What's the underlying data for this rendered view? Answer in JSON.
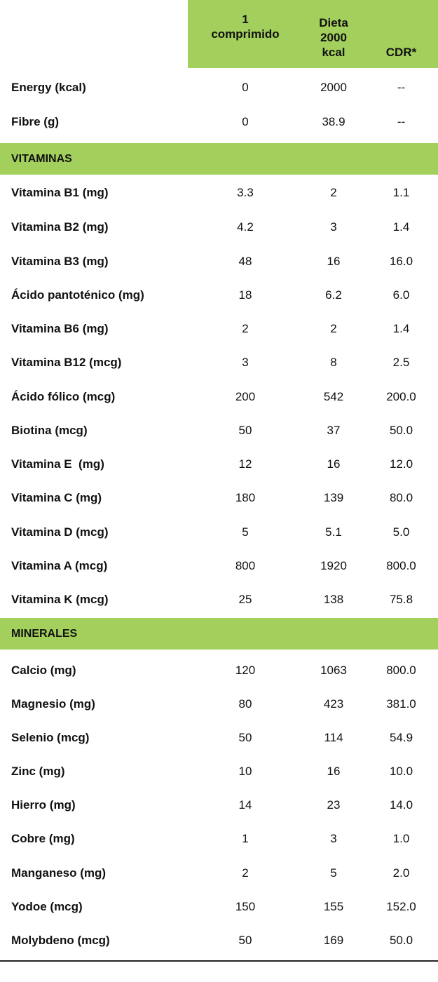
{
  "table": {
    "headers": [
      "1\ncomprimido",
      "Dieta\n2000\nkcal",
      "CDR*"
    ],
    "top_rows": [
      {
        "label": "Energy (kcal)",
        "values": [
          "0",
          "2000",
          "--"
        ]
      },
      {
        "label": "Fibre (g)",
        "values": [
          "0",
          "38.9",
          "--"
        ]
      }
    ],
    "vitaminas_title": "VITAMINAS",
    "vitaminas": [
      {
        "label": "Vitamina B1 (mg)",
        "values": [
          "3.3",
          "2",
          "1.1"
        ]
      },
      {
        "label": "Vitamina B2 (mg)",
        "values": [
          "4.2",
          "3",
          "1.4"
        ]
      },
      {
        "label": "Vitamina B3 (mg)",
        "values": [
          "48",
          "16",
          "16.0"
        ]
      },
      {
        "label": "Ácido pantoténico (mg)",
        "values": [
          "18",
          "6.2",
          "6.0"
        ]
      },
      {
        "label": "Vitamina B6 (mg)",
        "values": [
          "2",
          "2",
          "1.4"
        ]
      },
      {
        "label": "Vitamina B12 (mcg)",
        "values": [
          "3",
          "8",
          "2.5"
        ]
      },
      {
        "label": "Ácido fólico (mcg)",
        "values": [
          "200",
          "542",
          "200.0"
        ]
      },
      {
        "label": "Biotina (mcg)",
        "values": [
          "50",
          "37",
          "50.0"
        ]
      },
      {
        "label": "Vitamina E  (mg)",
        "values": [
          "12",
          "16",
          "12.0"
        ]
      },
      {
        "label": "Vitamina C (mg)",
        "values": [
          "180",
          "139",
          "80.0"
        ]
      },
      {
        "label": "Vitamina D (mcg)",
        "values": [
          "5",
          "5.1",
          "5.0"
        ]
      },
      {
        "label": "Vitamina A (mcg)",
        "values": [
          "800",
          "1920",
          "800.0"
        ]
      },
      {
        "label": "Vitamina K (mcg)",
        "values": [
          "25",
          "138",
          "75.8"
        ]
      }
    ],
    "minerales_title": "MINERALES",
    "minerales": [
      {
        "label": "Calcio (mg)",
        "values": [
          "120",
          "1063",
          "800.0"
        ]
      },
      {
        "label": "Magnesio (mg)",
        "values": [
          "80",
          "423",
          "381.0"
        ]
      },
      {
        "label": "Selenio (mcg)",
        "values": [
          "50",
          "114",
          "54.9"
        ]
      },
      {
        "label": "Zinc (mg)",
        "values": [
          "10",
          "16",
          "10.0"
        ]
      },
      {
        "label": "Hierro (mg)",
        "values": [
          "14",
          "23",
          "14.0"
        ]
      },
      {
        "label": "Cobre (mg)",
        "values": [
          "1",
          "3",
          "1.0"
        ]
      },
      {
        "label": "Manganeso (mg)",
        "values": [
          "2",
          "5",
          "2.0"
        ]
      },
      {
        "label": "Yodoe (mcg)",
        "values": [
          "150",
          "155",
          "152.0"
        ]
      },
      {
        "label": "Molybdeno (mcg)",
        "values": [
          "50",
          "169",
          "50.0"
        ]
      }
    ],
    "colors": {
      "section_green": "#a3cf5d",
      "text": "#111111"
    }
  }
}
